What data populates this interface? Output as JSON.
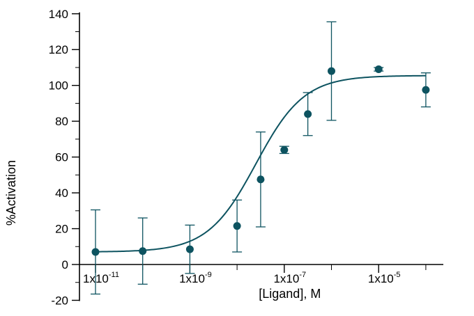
{
  "chart_data": {
    "type": "scatter",
    "xlabel": "[Ligand], M",
    "ylabel": "%Activation",
    "x_scale": "log10",
    "xlim": [
      1e-12,
      0.001
    ],
    "ylim": [
      -20,
      140
    ],
    "yticks": [
      -20,
      0,
      20,
      40,
      60,
      80,
      100,
      120,
      140
    ],
    "xticks": [
      {
        "value": 1e-11,
        "base": "1x10",
        "exp": "-11"
      },
      {
        "value": 1e-09,
        "base": "1x10",
        "exp": "-9"
      },
      {
        "value": 1e-07,
        "base": "1x10",
        "exp": "-7"
      },
      {
        "value": 1e-05,
        "base": "1x10",
        "exp": "-5"
      }
    ],
    "grid": false,
    "color": "#0d5360",
    "points": [
      {
        "x": 1e-11,
        "y": 7,
        "err": 23.5
      },
      {
        "x": 1e-10,
        "y": 7.5,
        "err": 18.5
      },
      {
        "x": 1e-09,
        "y": 8.5,
        "err": 13.5
      },
      {
        "x": 1e-08,
        "y": 21.5,
        "err": 14.5
      },
      {
        "x": 3.16e-08,
        "y": 47.5,
        "err": 26.5
      },
      {
        "x": 1e-07,
        "y": 64,
        "err": 2
      },
      {
        "x": 3.16e-07,
        "y": 84,
        "err": 12
      },
      {
        "x": 1e-06,
        "y": 108,
        "err": 27.5
      },
      {
        "x": 1e-05,
        "y": 109,
        "err": 1
      },
      {
        "x": 0.0001,
        "y": 97.5,
        "err": 9.5
      }
    ],
    "fit": {
      "bottom": 7,
      "top": 105.5,
      "log_ec50": -7.6,
      "hill": 0.85
    }
  }
}
